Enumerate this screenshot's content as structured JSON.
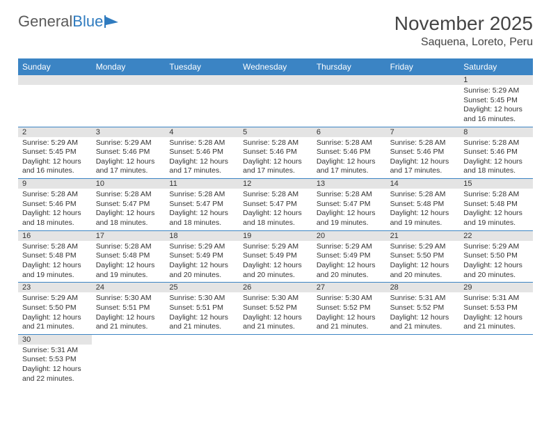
{
  "logo": {
    "text1": "General",
    "text2": "Blue"
  },
  "title": "November 2025",
  "location": "Saquena, Loreto, Peru",
  "dayNames": [
    "Sunday",
    "Monday",
    "Tuesday",
    "Wednesday",
    "Thursday",
    "Friday",
    "Saturday"
  ],
  "colors": {
    "headerBg": "#3b84c4",
    "headerText": "#ffffff",
    "dateBg": "#e4e4e4",
    "border": "#3b84c4",
    "logoBlue": "#2f7bbf",
    "textMain": "#333333"
  },
  "weeks": [
    [
      null,
      null,
      null,
      null,
      null,
      null,
      {
        "d": "1",
        "sr": "5:29 AM",
        "ss": "5:45 PM",
        "dl": "12 hours and 16 minutes."
      }
    ],
    [
      {
        "d": "2",
        "sr": "5:29 AM",
        "ss": "5:45 PM",
        "dl": "12 hours and 16 minutes."
      },
      {
        "d": "3",
        "sr": "5:29 AM",
        "ss": "5:46 PM",
        "dl": "12 hours and 17 minutes."
      },
      {
        "d": "4",
        "sr": "5:28 AM",
        "ss": "5:46 PM",
        "dl": "12 hours and 17 minutes."
      },
      {
        "d": "5",
        "sr": "5:28 AM",
        "ss": "5:46 PM",
        "dl": "12 hours and 17 minutes."
      },
      {
        "d": "6",
        "sr": "5:28 AM",
        "ss": "5:46 PM",
        "dl": "12 hours and 17 minutes."
      },
      {
        "d": "7",
        "sr": "5:28 AM",
        "ss": "5:46 PM",
        "dl": "12 hours and 17 minutes."
      },
      {
        "d": "8",
        "sr": "5:28 AM",
        "ss": "5:46 PM",
        "dl": "12 hours and 18 minutes."
      }
    ],
    [
      {
        "d": "9",
        "sr": "5:28 AM",
        "ss": "5:46 PM",
        "dl": "12 hours and 18 minutes."
      },
      {
        "d": "10",
        "sr": "5:28 AM",
        "ss": "5:47 PM",
        "dl": "12 hours and 18 minutes."
      },
      {
        "d": "11",
        "sr": "5:28 AM",
        "ss": "5:47 PM",
        "dl": "12 hours and 18 minutes."
      },
      {
        "d": "12",
        "sr": "5:28 AM",
        "ss": "5:47 PM",
        "dl": "12 hours and 18 minutes."
      },
      {
        "d": "13",
        "sr": "5:28 AM",
        "ss": "5:47 PM",
        "dl": "12 hours and 19 minutes."
      },
      {
        "d": "14",
        "sr": "5:28 AM",
        "ss": "5:48 PM",
        "dl": "12 hours and 19 minutes."
      },
      {
        "d": "15",
        "sr": "5:28 AM",
        "ss": "5:48 PM",
        "dl": "12 hours and 19 minutes."
      }
    ],
    [
      {
        "d": "16",
        "sr": "5:28 AM",
        "ss": "5:48 PM",
        "dl": "12 hours and 19 minutes."
      },
      {
        "d": "17",
        "sr": "5:28 AM",
        "ss": "5:48 PM",
        "dl": "12 hours and 19 minutes."
      },
      {
        "d": "18",
        "sr": "5:29 AM",
        "ss": "5:49 PM",
        "dl": "12 hours and 20 minutes."
      },
      {
        "d": "19",
        "sr": "5:29 AM",
        "ss": "5:49 PM",
        "dl": "12 hours and 20 minutes."
      },
      {
        "d": "20",
        "sr": "5:29 AM",
        "ss": "5:49 PM",
        "dl": "12 hours and 20 minutes."
      },
      {
        "d": "21",
        "sr": "5:29 AM",
        "ss": "5:50 PM",
        "dl": "12 hours and 20 minutes."
      },
      {
        "d": "22",
        "sr": "5:29 AM",
        "ss": "5:50 PM",
        "dl": "12 hours and 20 minutes."
      }
    ],
    [
      {
        "d": "23",
        "sr": "5:29 AM",
        "ss": "5:50 PM",
        "dl": "12 hours and 21 minutes."
      },
      {
        "d": "24",
        "sr": "5:30 AM",
        "ss": "5:51 PM",
        "dl": "12 hours and 21 minutes."
      },
      {
        "d": "25",
        "sr": "5:30 AM",
        "ss": "5:51 PM",
        "dl": "12 hours and 21 minutes."
      },
      {
        "d": "26",
        "sr": "5:30 AM",
        "ss": "5:52 PM",
        "dl": "12 hours and 21 minutes."
      },
      {
        "d": "27",
        "sr": "5:30 AM",
        "ss": "5:52 PM",
        "dl": "12 hours and 21 minutes."
      },
      {
        "d": "28",
        "sr": "5:31 AM",
        "ss": "5:52 PM",
        "dl": "12 hours and 21 minutes."
      },
      {
        "d": "29",
        "sr": "5:31 AM",
        "ss": "5:53 PM",
        "dl": "12 hours and 21 minutes."
      }
    ],
    [
      {
        "d": "30",
        "sr": "5:31 AM",
        "ss": "5:53 PM",
        "dl": "12 hours and 22 minutes."
      },
      null,
      null,
      null,
      null,
      null,
      null
    ]
  ],
  "labels": {
    "sunrise": "Sunrise:",
    "sunset": "Sunset:",
    "daylight": "Daylight:"
  }
}
